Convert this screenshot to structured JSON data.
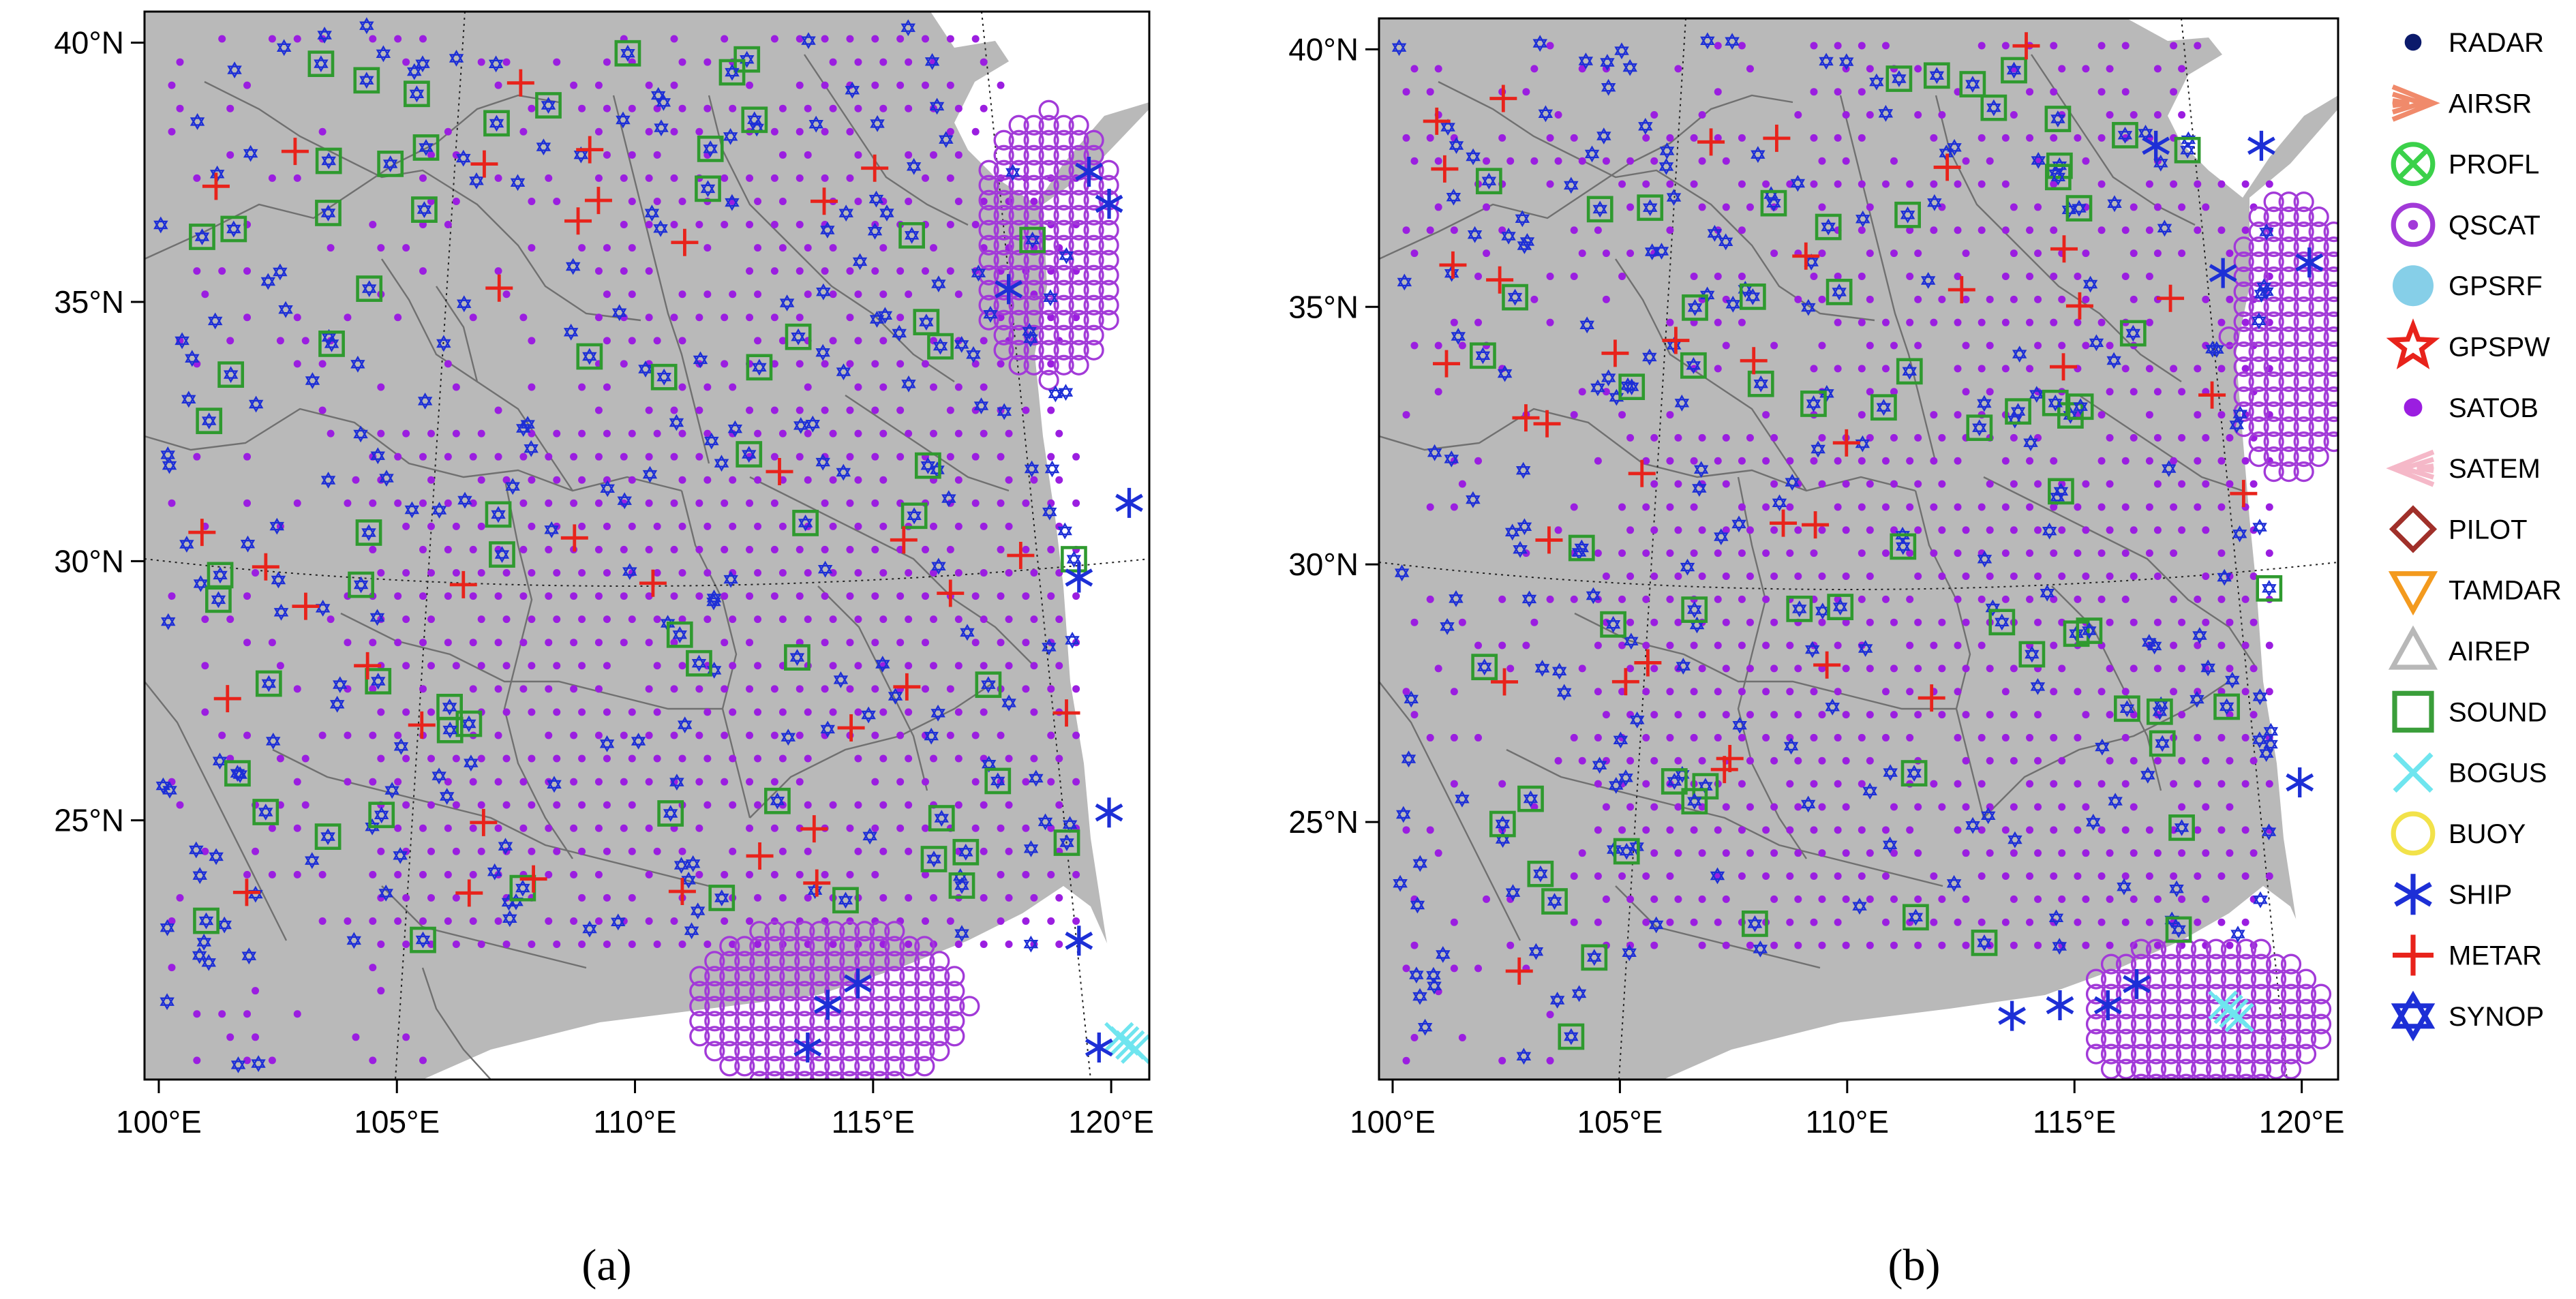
{
  "panels": [
    {
      "id": "a",
      "label": "(a)"
    },
    {
      "id": "b",
      "label": "(b)"
    }
  ],
  "axes": {
    "lon_range": [
      99.7,
      120.8
    ],
    "lat_range": [
      20.0,
      40.6
    ],
    "x_ticks": [
      100,
      105,
      110,
      115,
      120
    ],
    "x_tick_labels": [
      "100°E",
      "105°E",
      "110°E",
      "115°E",
      "120°E"
    ],
    "y_ticks": [
      25,
      30,
      35,
      40
    ],
    "y_tick_labels": [
      "25°N",
      "30°N",
      "35°N",
      "40°N"
    ]
  },
  "colors": {
    "land": "#b9b9b9",
    "sea": "#ffffff",
    "border": "#707070",
    "satob": "#9b1ee0",
    "synop": "#1d2fd6",
    "sound": "#2f9a2f",
    "metar": "#e8231b",
    "ship": "#1d2fd6",
    "qscat": "#a23ad8",
    "bogus": "#6fe5ef"
  },
  "legend": [
    {
      "name": "RADAR",
      "icon": "radar-dot-icon",
      "color": "#0b1a6b"
    },
    {
      "name": "AIRSR",
      "icon": "airsr-chevron-icon",
      "color": "#f08a6b"
    },
    {
      "name": "PROFL",
      "icon": "profl-circle-x-icon",
      "color": "#3bd14a"
    },
    {
      "name": "QSCAT",
      "icon": "qscat-circle-dot-icon",
      "color": "#a23ad8"
    },
    {
      "name": "GPSRF",
      "icon": "gpsrf-filled-circle-icon",
      "color": "#86cfe8"
    },
    {
      "name": "GPSPW",
      "icon": "gpspw-star-icon",
      "color": "#e8231b"
    },
    {
      "name": "SATOB",
      "icon": "satob-dot-icon",
      "color": "#9b1ee0"
    },
    {
      "name": "SATEM",
      "icon": "satem-chevron-icon",
      "color": "#f5b8c8"
    },
    {
      "name": "PILOT",
      "icon": "pilot-diamond-icon",
      "color": "#a0302a"
    },
    {
      "name": "TAMDAR",
      "icon": "tamdar-down-triangle-icon",
      "color": "#f39a1e"
    },
    {
      "name": "AIREP",
      "icon": "airep-triangle-icon",
      "color": "#b8b8b8"
    },
    {
      "name": "SOUND",
      "icon": "sound-square-icon",
      "color": "#3a9e3a"
    },
    {
      "name": "BOGUS",
      "icon": "bogus-x-icon",
      "color": "#6fe5ef"
    },
    {
      "name": "BUOY",
      "icon": "buoy-circle-icon",
      "color": "#f2e24a"
    },
    {
      "name": "SHIP",
      "icon": "ship-asterisk-icon",
      "color": "#1d2fd6"
    },
    {
      "name": "METAR",
      "icon": "metar-plus-icon",
      "color": "#e8231b"
    },
    {
      "name": "SYNOP",
      "icon": "synop-star-of-david-icon",
      "color": "#1d2fd6"
    }
  ]
}
